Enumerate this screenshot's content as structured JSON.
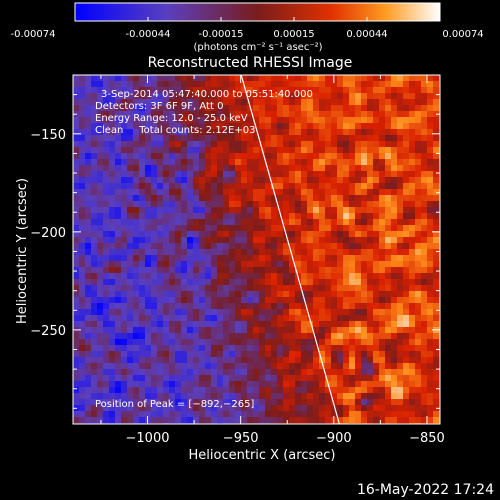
{
  "colorbar": {
    "tick_labels": [
      "-0.00074",
      "-0.00044",
      "-0.00015",
      "0.00015",
      "0.00044",
      "0.00074"
    ],
    "range": [
      -0.00074,
      0.00074
    ],
    "unit_label": "(photons cm⁻² s⁻¹ asec⁻²)"
  },
  "chart_data": {
    "type": "heatmap",
    "title": "Reconstructed RHESSI Image",
    "xlabel": "Heliocentric X (arcsec)",
    "ylabel": "Heliocentric Y (arcsec)",
    "xlim": [
      -1040,
      -843
    ],
    "ylim": [
      -298,
      -120
    ],
    "x_ticks": [
      -1000,
      -950,
      -900,
      -850
    ],
    "x_tick_labels": [
      "−1000",
      "−950",
      "−900",
      "−850"
    ],
    "y_ticks": [
      -150,
      -200,
      -250
    ],
    "y_tick_labels": [
      "−150",
      "−200",
      "−250"
    ],
    "info_lines": [
      "3-Sep-2014 05:47:40.000 to 05:51:40.000",
      "Detectors: 3F 6F 9F, Att 0",
      "Energy Range: 12.0 - 25.0 keV",
      "Clean     Total counts: 2.12E+03"
    ],
    "peak_label": "Position of Peak = [−892,−265]",
    "peak": [
      -892,
      -265
    ],
    "limb_line": [
      [
        -950,
        -119
      ],
      [
        -897,
        -298
      ]
    ],
    "colormap": [
      "#0000ff",
      "#5a3fbf",
      "#7a1c1c",
      "#d82000",
      "#ff8c1a",
      "#ffffff"
    ]
  },
  "timestamp": "16-May-2022 17:24"
}
